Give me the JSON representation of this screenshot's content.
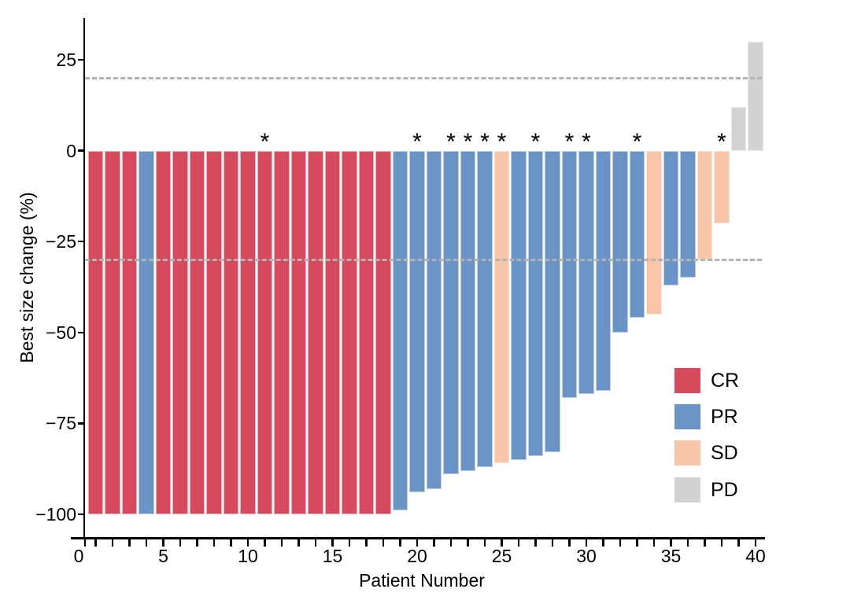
{
  "chart_data": {
    "type": "bar",
    "subtype": "waterfall",
    "title": "",
    "xlabel": "Patient Number",
    "ylabel": "Best size change (%)",
    "xticks": [
      0,
      5,
      10,
      15,
      20,
      25,
      30,
      35,
      40
    ],
    "yticks": [
      25,
      0,
      -25,
      -50,
      -75,
      -100
    ],
    "xlim": [
      0,
      40.6
    ],
    "ylim": [
      -106,
      36
    ],
    "grid": false,
    "star_symbol": "*",
    "reference_lines": [
      {
        "y": 20,
        "style": "dashed",
        "color": "#b3b3b3"
      },
      {
        "y": -30,
        "style": "dashed",
        "color": "#b3b3b3"
      }
    ],
    "legend": {
      "position": "right-middle",
      "items": [
        {
          "label": "CR",
          "color": "#d7495c"
        },
        {
          "label": "PR",
          "color": "#6b94c6"
        },
        {
          "label": "SD",
          "color": "#f8c5a8"
        },
        {
          "label": "PD",
          "color": "#d2d2d2"
        }
      ]
    },
    "bars": [
      {
        "patient": 1,
        "value": -100,
        "response": "CR",
        "star": false
      },
      {
        "patient": 2,
        "value": -100,
        "response": "CR",
        "star": false
      },
      {
        "patient": 3,
        "value": -100,
        "response": "CR",
        "star": false
      },
      {
        "patient": 4,
        "value": -100,
        "response": "PR",
        "star": false
      },
      {
        "patient": 5,
        "value": -100,
        "response": "CR",
        "star": false
      },
      {
        "patient": 6,
        "value": -100,
        "response": "CR",
        "star": false
      },
      {
        "patient": 7,
        "value": -100,
        "response": "CR",
        "star": false
      },
      {
        "patient": 8,
        "value": -100,
        "response": "CR",
        "star": false
      },
      {
        "patient": 9,
        "value": -100,
        "response": "CR",
        "star": false
      },
      {
        "patient": 10,
        "value": -100,
        "response": "CR",
        "star": false
      },
      {
        "patient": 11,
        "value": -100,
        "response": "CR",
        "star": true
      },
      {
        "patient": 12,
        "value": -100,
        "response": "CR",
        "star": false
      },
      {
        "patient": 13,
        "value": -100,
        "response": "CR",
        "star": false
      },
      {
        "patient": 14,
        "value": -100,
        "response": "CR",
        "star": false
      },
      {
        "patient": 15,
        "value": -100,
        "response": "CR",
        "star": false
      },
      {
        "patient": 16,
        "value": -100,
        "response": "CR",
        "star": false
      },
      {
        "patient": 17,
        "value": -100,
        "response": "CR",
        "star": false
      },
      {
        "patient": 18,
        "value": -100,
        "response": "CR",
        "star": false
      },
      {
        "patient": 19,
        "value": -99,
        "response": "PR",
        "star": false
      },
      {
        "patient": 20,
        "value": -94,
        "response": "PR",
        "star": true
      },
      {
        "patient": 21,
        "value": -93,
        "response": "PR",
        "star": false
      },
      {
        "patient": 22,
        "value": -89,
        "response": "PR",
        "star": true
      },
      {
        "patient": 23,
        "value": -88,
        "response": "PR",
        "star": true
      },
      {
        "patient": 24,
        "value": -87,
        "response": "PR",
        "star": true
      },
      {
        "patient": 25,
        "value": -86,
        "response": "SD",
        "star": true
      },
      {
        "patient": 26,
        "value": -85,
        "response": "PR",
        "star": false
      },
      {
        "patient": 27,
        "value": -84,
        "response": "PR",
        "star": true
      },
      {
        "patient": 28,
        "value": -83,
        "response": "PR",
        "star": false
      },
      {
        "patient": 29,
        "value": -68,
        "response": "PR",
        "star": true
      },
      {
        "patient": 30,
        "value": -67,
        "response": "PR",
        "star": true
      },
      {
        "patient": 31,
        "value": -66,
        "response": "PR",
        "star": false
      },
      {
        "patient": 32,
        "value": -50,
        "response": "PR",
        "star": false
      },
      {
        "patient": 33,
        "value": -46,
        "response": "PR",
        "star": true
      },
      {
        "patient": 34,
        "value": -45,
        "response": "SD",
        "star": false
      },
      {
        "patient": 35,
        "value": -37,
        "response": "PR",
        "star": false
      },
      {
        "patient": 36,
        "value": -35,
        "response": "PR",
        "star": false
      },
      {
        "patient": 37,
        "value": -30,
        "response": "SD",
        "star": false
      },
      {
        "patient": 38,
        "value": -20,
        "response": "SD",
        "star": true
      },
      {
        "patient": 39,
        "value": 12,
        "response": "PD",
        "star": false
      },
      {
        "patient": 40,
        "value": 30,
        "response": "PD",
        "star": false
      }
    ]
  }
}
